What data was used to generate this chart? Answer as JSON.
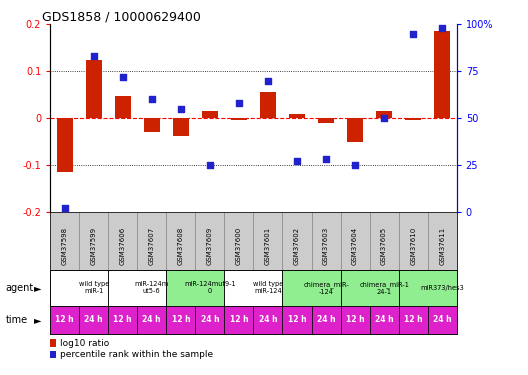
{
  "title": "GDS1858 / 10000629400",
  "samples": [
    "GSM37598",
    "GSM37599",
    "GSM37606",
    "GSM37607",
    "GSM37608",
    "GSM37609",
    "GSM37600",
    "GSM37601",
    "GSM37602",
    "GSM37603",
    "GSM37604",
    "GSM37605",
    "GSM37610",
    "GSM37611"
  ],
  "log10_ratio": [
    -0.115,
    0.125,
    0.048,
    -0.03,
    -0.038,
    0.015,
    -0.005,
    0.055,
    0.008,
    -0.01,
    -0.05,
    0.015,
    -0.005,
    0.185
  ],
  "percentile_rank": [
    2,
    83,
    72,
    60,
    55,
    25,
    58,
    70,
    27,
    28,
    25,
    50,
    95,
    98
  ],
  "agent_groups": [
    {
      "label": "wild type\nmiR-1",
      "start": 0,
      "end": 2,
      "color": "#ffffff"
    },
    {
      "label": "miR-124m\nut5-6",
      "start": 2,
      "end": 4,
      "color": "#ffffff"
    },
    {
      "label": "miR-124mut9-1\n0",
      "start": 4,
      "end": 6,
      "color": "#90ee90"
    },
    {
      "label": "wild type\nmiR-124",
      "start": 6,
      "end": 8,
      "color": "#ffffff"
    },
    {
      "label": "chimera_miR-\n-124",
      "start": 8,
      "end": 10,
      "color": "#90ee90"
    },
    {
      "label": "chimera_miR-1\n24-1",
      "start": 10,
      "end": 12,
      "color": "#90ee90"
    },
    {
      "label": "miR373/hes3",
      "start": 12,
      "end": 14,
      "color": "#90ee90"
    }
  ],
  "time_labels": [
    "12 h",
    "24 h",
    "12 h",
    "24 h",
    "12 h",
    "24 h",
    "12 h",
    "24 h",
    "12 h",
    "24 h",
    "12 h",
    "24 h",
    "12 h",
    "24 h"
  ],
  "bar_color": "#cc2200",
  "scatter_color": "#2222cc",
  "ylim_left": [
    -0.2,
    0.2
  ],
  "ylim_right": [
    0,
    100
  ],
  "yticks_left": [
    -0.2,
    -0.1,
    0.0,
    0.1,
    0.2
  ],
  "yticks_right": [
    0,
    25,
    50,
    75,
    100
  ],
  "ytick_right_labels": [
    "0",
    "25",
    "50",
    "75",
    "100%"
  ],
  "sample_bg_color": "#cccccc",
  "time_row_color": "#dd22cc"
}
